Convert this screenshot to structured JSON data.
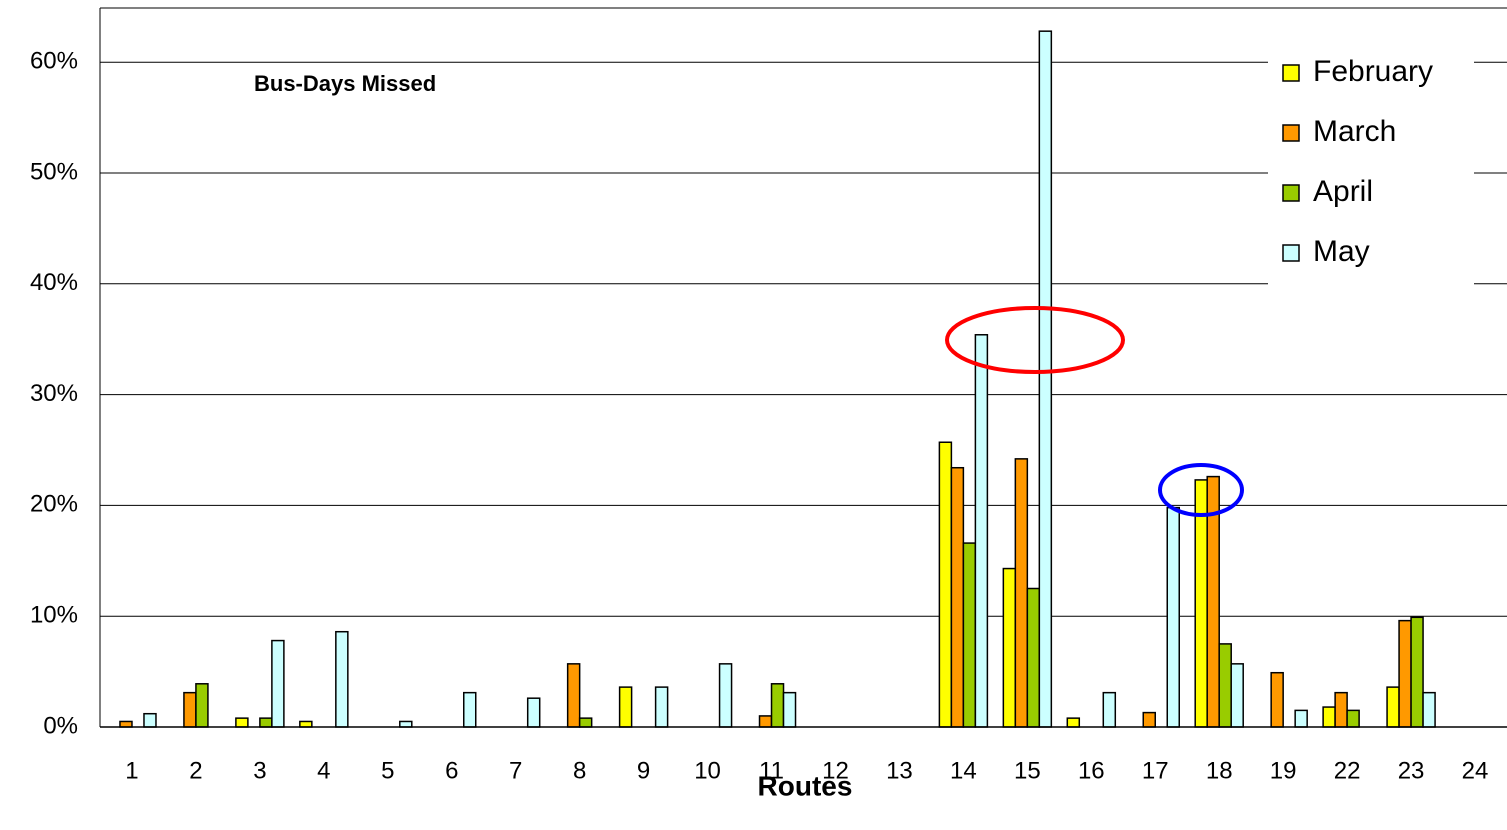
{
  "chart_data": {
    "type": "bar",
    "title": "Bus-Days Missed",
    "x_label": "Routes",
    "categories": [
      "1",
      "2",
      "3",
      "4",
      "5",
      "6",
      "7",
      "8",
      "9",
      "10",
      "11",
      "12",
      "13",
      "14",
      "15",
      "16",
      "17",
      "18",
      "19",
      "22",
      "23",
      "24"
    ],
    "series": [
      {
        "name": "February",
        "color": "#ffff00",
        "values": [
          0,
          0,
          0.8,
          0.5,
          0,
          0,
          0,
          0,
          3.6,
          0,
          0,
          0,
          0,
          25.7,
          14.3,
          0.8,
          0,
          22.3,
          0,
          1.8,
          3.6,
          0
        ]
      },
      {
        "name": "March",
        "color": "#ff9900",
        "values": [
          0.5,
          3.1,
          0,
          0,
          0,
          0,
          0,
          5.7,
          0,
          0,
          1.0,
          0,
          0,
          23.4,
          24.2,
          0,
          1.3,
          22.6,
          4.9,
          3.1,
          9.6,
          0
        ]
      },
      {
        "name": "April",
        "color": "#99cc00",
        "values": [
          0,
          3.9,
          0.8,
          0,
          0,
          0,
          0,
          0.8,
          0,
          0,
          3.9,
          0,
          0,
          16.6,
          12.5,
          0,
          0,
          7.5,
          0,
          1.5,
          9.9,
          0
        ]
      },
      {
        "name": "May",
        "color": "#ccffff",
        "values": [
          1.2,
          0,
          7.8,
          8.6,
          0.5,
          3.1,
          2.6,
          0,
          3.6,
          5.7,
          3.1,
          0,
          0,
          35.4,
          62.8,
          3.1,
          19.8,
          5.7,
          1.5,
          0,
          3.1,
          0
        ]
      }
    ],
    "ylim": [
      0,
      65
    ],
    "yticks": [
      {
        "value": 0,
        "label": "0%"
      },
      {
        "value": 10,
        "label": "10%"
      },
      {
        "value": 20,
        "label": "20%"
      },
      {
        "value": 30,
        "label": "30%"
      },
      {
        "value": 40,
        "label": "40%"
      },
      {
        "value": 50,
        "label": "50%"
      },
      {
        "value": 60,
        "label": "60%"
      }
    ],
    "grid": true,
    "legend": "top-right"
  }
}
